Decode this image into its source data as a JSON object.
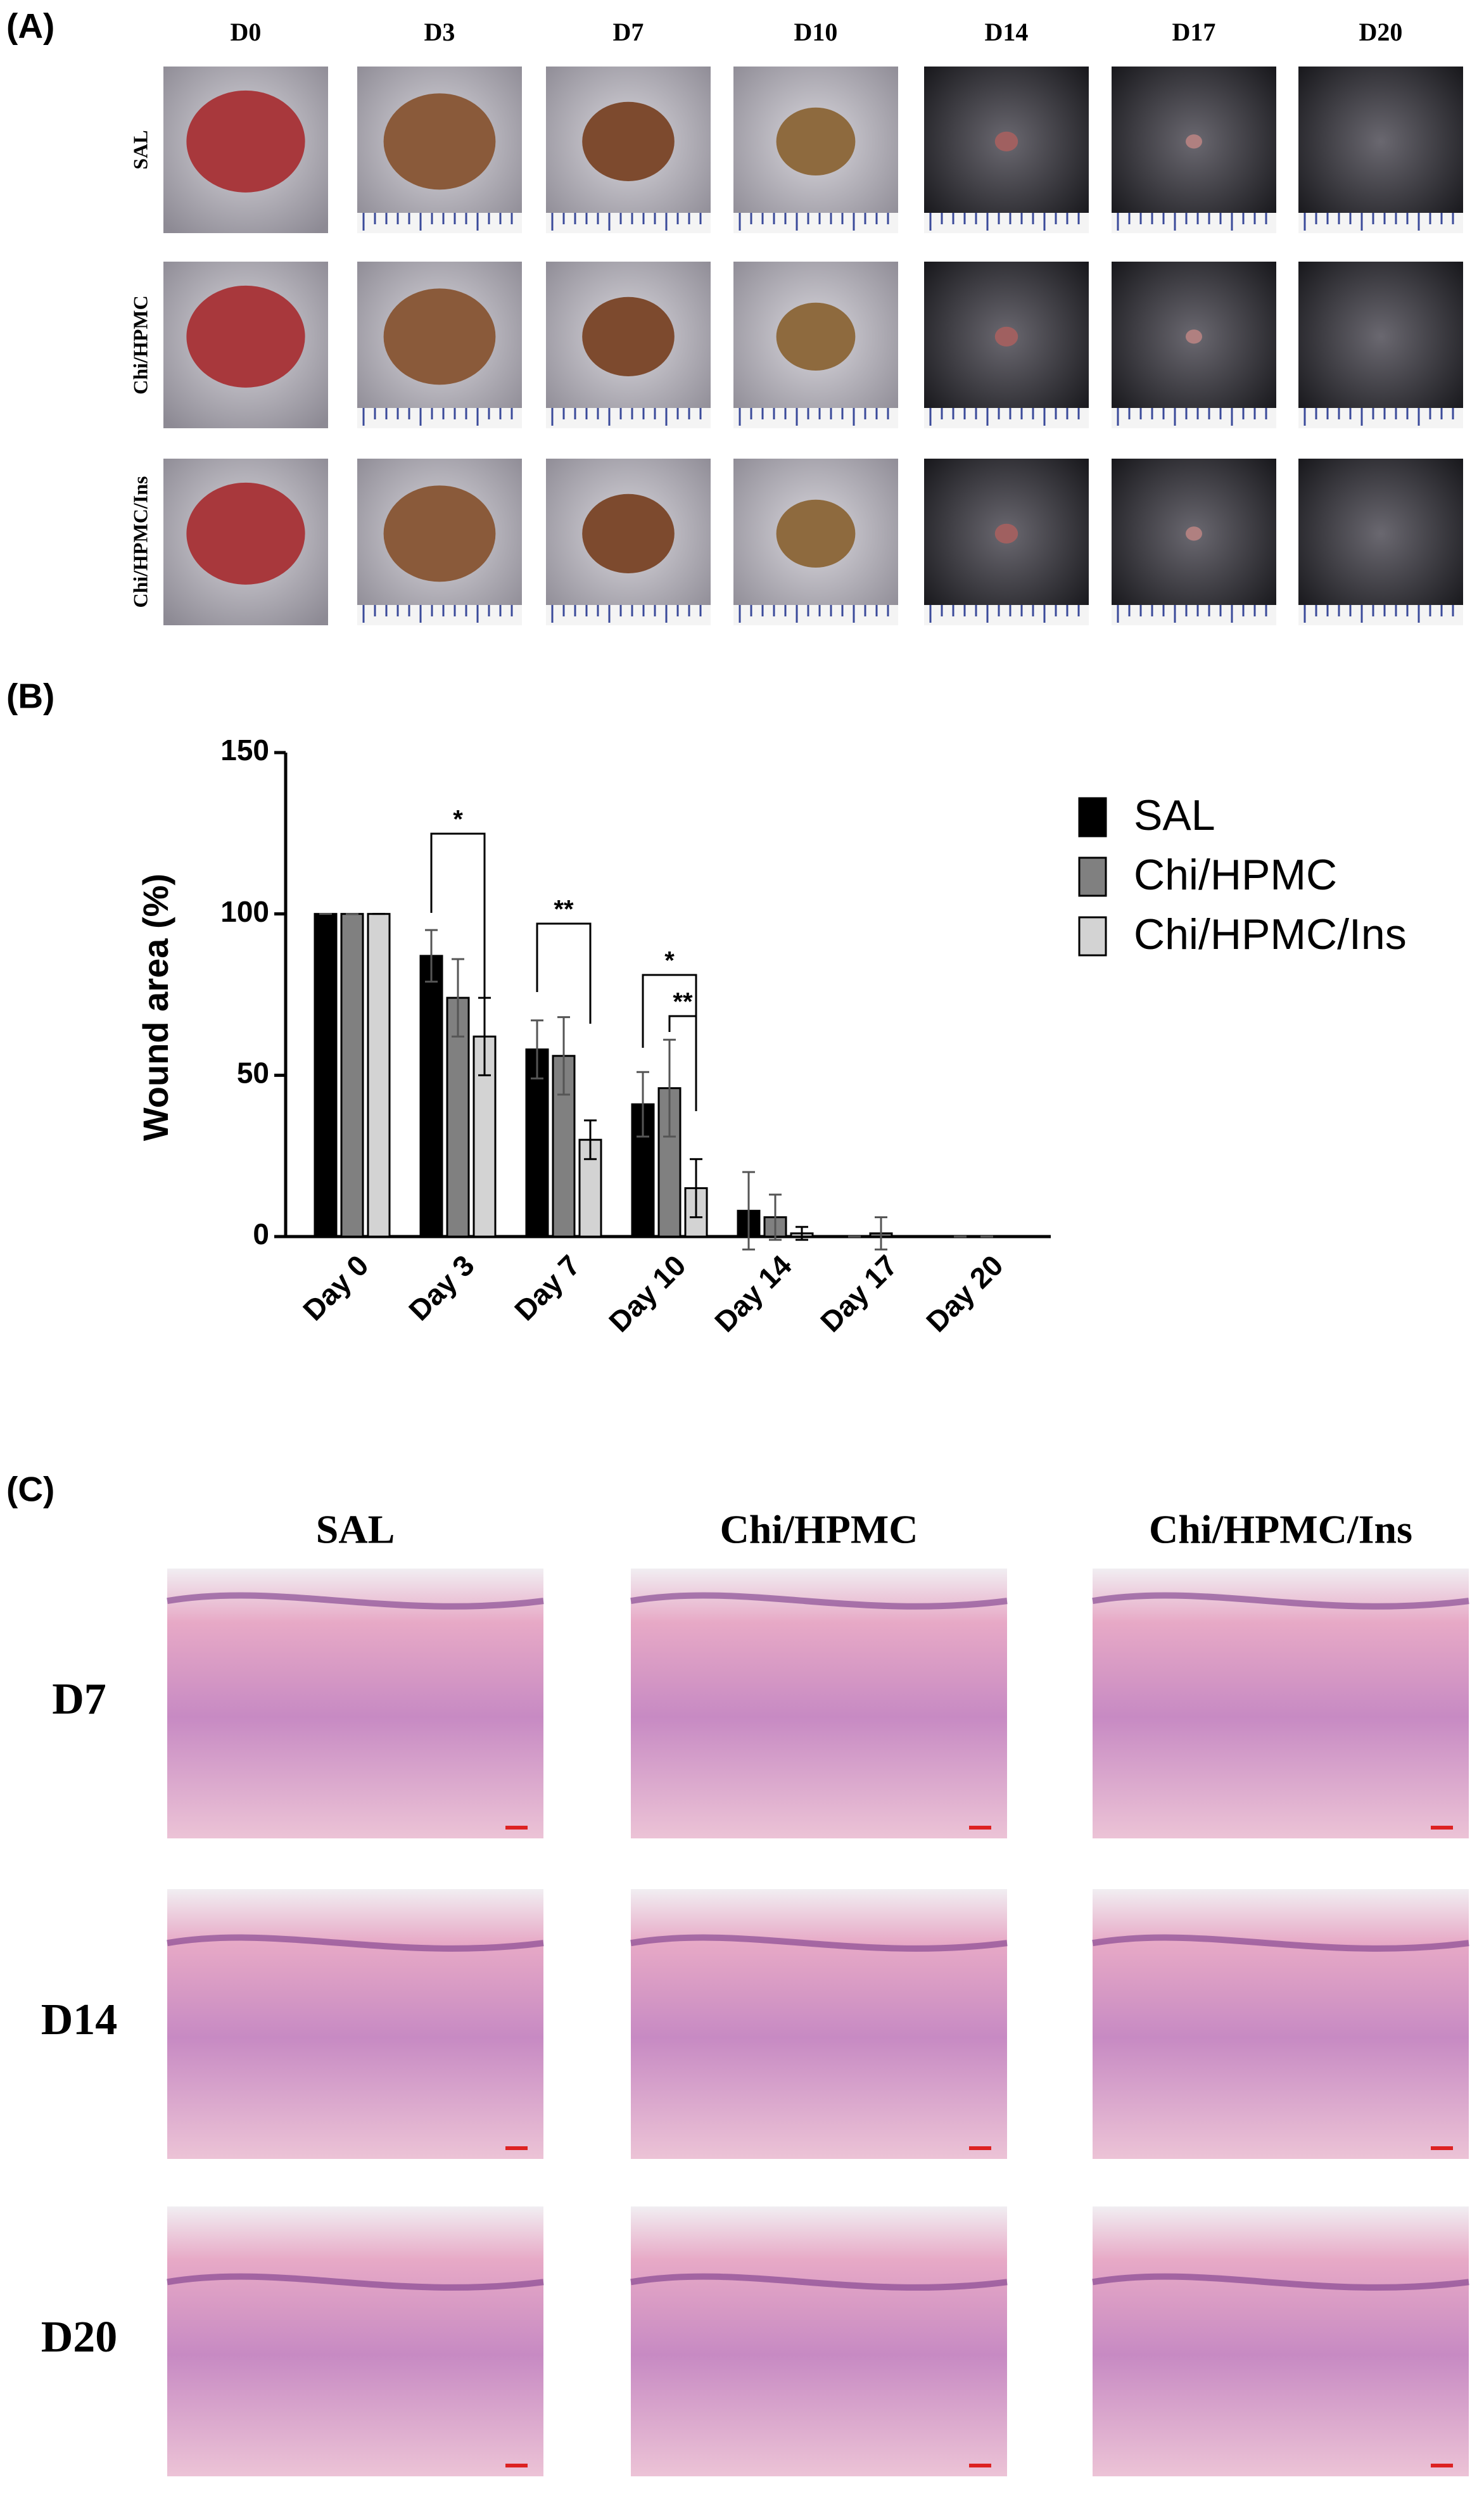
{
  "panel_labels": [
    "(A)",
    "(B)",
    "(C)"
  ],
  "panel_a": {
    "columns": [
      "D0",
      "D3",
      "D7",
      "D10",
      "D14",
      "D17",
      "D20"
    ],
    "rows": [
      "SAL",
      "Chi/HPMC",
      "Chi/HPMC/Ins"
    ]
  },
  "chart_data": {
    "type": "bar",
    "y_label": "Wound area (%)",
    "categories": [
      "Day 0",
      "Day 3",
      "Day 7",
      "Day 10",
      "Day 14",
      "Day 17",
      "Day 20"
    ],
    "series": [
      {
        "name": "SAL",
        "color": "#000000",
        "values": [
          100,
          87,
          58,
          41,
          8,
          0,
          0
        ],
        "errors": [
          0,
          8,
          9,
          10,
          12,
          0,
          0
        ]
      },
      {
        "name": "Chi/HPMC",
        "color": "#808080",
        "values": [
          100,
          74,
          56,
          46,
          6,
          1,
          0
        ],
        "errors": [
          0,
          12,
          12,
          15,
          7,
          5,
          0
        ]
      },
      {
        "name": "Chi/HPMC/Ins",
        "color": "#d3d3d3",
        "values": [
          100,
          62,
          30,
          15,
          1,
          0,
          0
        ],
        "errors": [
          0,
          12,
          6,
          9,
          2,
          0,
          0
        ]
      }
    ],
    "ylim": [
      0,
      150
    ],
    "yticks": [
      0,
      50,
      100,
      150
    ],
    "legend": "right",
    "annotations": [
      "*",
      "**",
      "*",
      "**"
    ]
  },
  "panel_c": {
    "columns": [
      "SAL",
      "Chi/HPMC",
      "Chi/HPMC/Ins"
    ],
    "rows": [
      "D7",
      "D14",
      "D20"
    ]
  }
}
